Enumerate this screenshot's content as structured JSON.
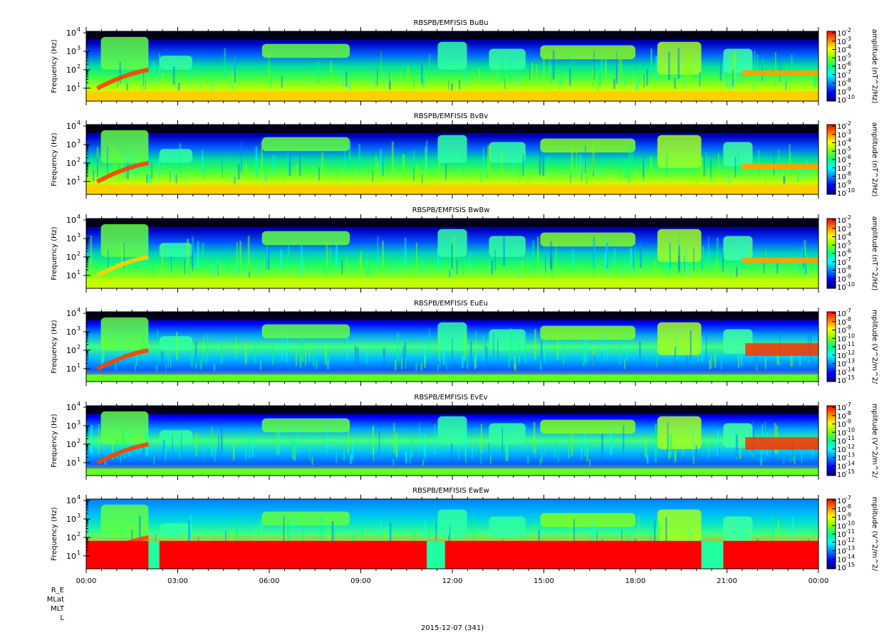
{
  "figure": {
    "date_label": "2015-12-07 (341)",
    "ephemeris_labels": [
      "R_E",
      "MLat",
      "MLT",
      "L"
    ],
    "x_ticks": [
      "00:00",
      "03:00",
      "06:00",
      "09:00",
      "12:00",
      "15:00",
      "18:00",
      "21:00",
      "00:00"
    ]
  },
  "colormap": [
    "#000080",
    "#0000ff",
    "#0080ff",
    "#00ffff",
    "#00ff80",
    "#80ff00",
    "#ffff00",
    "#ff8000",
    "#ff0000"
  ],
  "chart_data": [
    {
      "type": "heatmap",
      "title": "RBSPB/EMFISIS  BuBu",
      "ylabel": "Frequency (Hz)",
      "yscale": "log",
      "y_ticks": [
        "10",
        "10",
        "10",
        "10"
      ],
      "y_tick_exps": [
        "1",
        "2",
        "3",
        "4"
      ],
      "colorbar_label": "amplitude (nT^2/Hz)",
      "colorbar_ticks": [
        "10",
        "10",
        "10",
        "10",
        "10",
        "10",
        "10",
        "10",
        "10"
      ],
      "colorbar_exps": [
        "-2",
        "-3",
        "-4",
        "-5",
        "-6",
        "-7",
        "-8",
        "-9",
        "-10"
      ]
    },
    {
      "type": "heatmap",
      "title": "RBSPB/EMFISIS  BvBv",
      "ylabel": "Frequency (Hz)",
      "yscale": "log",
      "y_ticks": [
        "10",
        "10",
        "10",
        "10"
      ],
      "y_tick_exps": [
        "1",
        "2",
        "3",
        "4"
      ],
      "colorbar_label": "amplitude (nT^2/Hz)",
      "colorbar_ticks": [
        "10",
        "10",
        "10",
        "10",
        "10",
        "10",
        "10",
        "10",
        "10"
      ],
      "colorbar_exps": [
        "-2",
        "-3",
        "-4",
        "-5",
        "-6",
        "-7",
        "-8",
        "-9",
        "-10"
      ]
    },
    {
      "type": "heatmap",
      "title": "RBSPB/EMFISIS  BwBw",
      "ylabel": "Frequency (Hz)",
      "yscale": "log",
      "y_ticks": [
        "10",
        "10",
        "10",
        "10"
      ],
      "y_tick_exps": [
        "1",
        "2",
        "3",
        "4"
      ],
      "colorbar_label": "amplitude (nT^2/Hz)",
      "colorbar_ticks": [
        "10",
        "10",
        "10",
        "10",
        "10",
        "10",
        "10",
        "10",
        "10"
      ],
      "colorbar_exps": [
        "-2",
        "-3",
        "-4",
        "-5",
        "-6",
        "-7",
        "-8",
        "-9",
        "-10"
      ]
    },
    {
      "type": "heatmap",
      "title": "RBSPB/EMFISIS  EuEu",
      "ylabel": "Frequency (Hz)",
      "yscale": "log",
      "y_ticks": [
        "10",
        "10",
        "10",
        "10"
      ],
      "y_tick_exps": [
        "1",
        "2",
        "3",
        "4"
      ],
      "colorbar_label": "mplitude (V^2/m^2/",
      "colorbar_ticks": [
        "10",
        "10",
        "10",
        "10",
        "10",
        "10",
        "10",
        "10",
        "10"
      ],
      "colorbar_exps": [
        "-7",
        "-8",
        "-9",
        "-10",
        "-11",
        "-12",
        "-13",
        "-14",
        "-15"
      ]
    },
    {
      "type": "heatmap",
      "title": "RBSPB/EMFISIS  EvEv",
      "ylabel": "Frequency (Hz)",
      "yscale": "log",
      "y_ticks": [
        "10",
        "10",
        "10",
        "10"
      ],
      "y_tick_exps": [
        "1",
        "2",
        "3",
        "4"
      ],
      "colorbar_label": "mplitude (V^2/m^2/",
      "colorbar_ticks": [
        "10",
        "10",
        "10",
        "10",
        "10",
        "10",
        "10",
        "10",
        "10"
      ],
      "colorbar_exps": [
        "-7",
        "-8",
        "-9",
        "-10",
        "-11",
        "-12",
        "-13",
        "-14",
        "-15"
      ]
    },
    {
      "type": "heatmap",
      "title": "RBSPB/EMFISIS  EwEw",
      "ylabel": "Frequency (Hz)",
      "yscale": "log",
      "y_ticks": [
        "10",
        "10",
        "10",
        "10"
      ],
      "y_tick_exps": [
        "1",
        "2",
        "3",
        "4"
      ],
      "colorbar_label": "mplitude (V^2/m^2/",
      "colorbar_ticks": [
        "10",
        "10",
        "10",
        "10",
        "10",
        "10",
        "10",
        "10",
        "10"
      ],
      "colorbar_exps": [
        "-7",
        "-8",
        "-9",
        "-10",
        "-11",
        "-12",
        "-13",
        "-14",
        "-15"
      ]
    }
  ]
}
